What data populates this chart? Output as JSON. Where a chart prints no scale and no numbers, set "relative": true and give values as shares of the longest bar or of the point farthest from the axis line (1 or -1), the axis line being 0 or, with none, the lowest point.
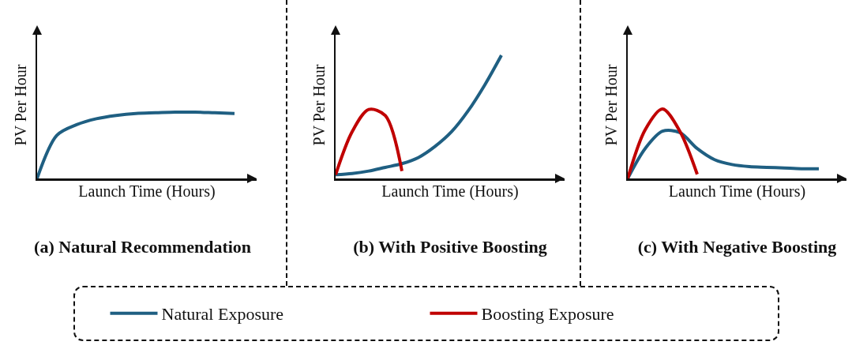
{
  "chart_data": [
    {
      "type": "line",
      "relative": true,
      "title": "(a) Natural Recommendation",
      "xlabel": "Launch Time (Hours)",
      "ylabel": "PV Per Hour",
      "legend": false,
      "categories": [
        null,
        null,
        null,
        null,
        null,
        null,
        null,
        null,
        null,
        null,
        null,
        null
      ],
      "series": [
        {
          "color": "#1f5f82",
          "values": [
            0,
            0.65,
            0.81,
            0.9,
            0.95,
            0.98,
            0.99,
            1,
            1,
            0.99,
            0.98,
            null
          ]
        }
      ]
    },
    {
      "type": "line",
      "relative": true,
      "title": "(b) With Positive Boosting",
      "xlabel": "Launch Time (Hours)",
      "ylabel": "PV Per Hour",
      "legend": "bottom",
      "categories": [
        null,
        null,
        null,
        null,
        null,
        null,
        null,
        null,
        null,
        null,
        null,
        null,
        null,
        null
      ],
      "series": [
        {
          "name": "Natural Exposure",
          "color": "#1f5f82",
          "values": [
            0.03,
            0.04,
            0.06,
            0.09,
            0.12,
            0.17,
            0.26,
            0.38,
            0.55,
            0.76,
            1,
            null,
            null,
            null
          ]
        },
        {
          "name": "Boosting Exposure",
          "color": "#c00000",
          "values": [
            0.03,
            0.38,
            0.56,
            0.51,
            0.06,
            null,
            null,
            null,
            null,
            null,
            null,
            null,
            null,
            null
          ]
        }
      ]
    },
    {
      "type": "line",
      "relative": true,
      "title": "(c) With Negative Boosting",
      "xlabel": "Launch Time (Hours)",
      "ylabel": "PV Per Hour",
      "legend": false,
      "categories": [
        null,
        null,
        null,
        null,
        null,
        null,
        null,
        null,
        null,
        null,
        null,
        null,
        null
      ],
      "series": [
        {
          "color": "#1f5f82",
          "values": [
            0,
            0.43,
            0.68,
            0.66,
            0.43,
            0.27,
            0.2,
            0.17,
            0.16,
            0.15,
            0.14,
            0.14,
            null
          ]
        },
        {
          "color": "#c00000",
          "values": [
            0,
            0.7,
            1,
            0.68,
            0.06,
            null,
            null,
            null,
            null,
            null,
            null,
            null,
            null
          ]
        }
      ]
    }
  ]
}
